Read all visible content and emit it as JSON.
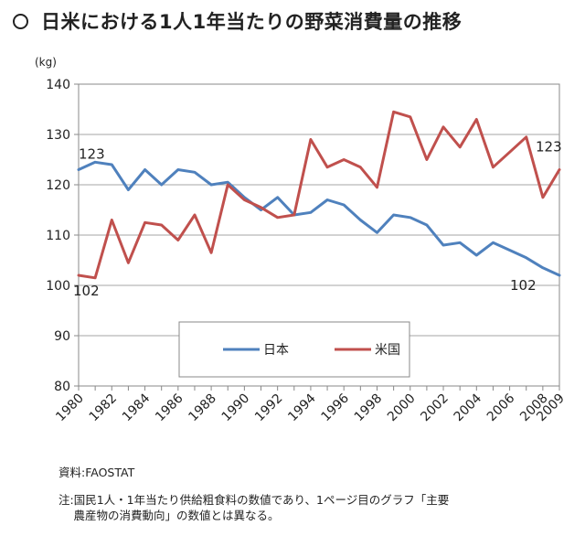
{
  "title": "日米における1人1年当たりの野菜消費量の推移",
  "chart_data": {
    "type": "line",
    "ylabel": "(kg)",
    "ylim": [
      80,
      140
    ],
    "yticks": [
      80,
      90,
      100,
      110,
      120,
      130,
      140
    ],
    "xlim": [
      1980,
      2009
    ],
    "xticks": [
      1980,
      1982,
      1984,
      1986,
      1988,
      1990,
      1992,
      1994,
      1996,
      1998,
      2000,
      2002,
      2004,
      2006,
      2008,
      2009
    ],
    "grid": true,
    "legend_placement": "bottom-center",
    "series": [
      {
        "name": "日本",
        "color": "#4f81bd",
        "x": [
          1980,
          1981,
          1982,
          1983,
          1984,
          1985,
          1986,
          1987,
          1988,
          1989,
          1990,
          1991,
          1992,
          1993,
          1994,
          1995,
          1996,
          1997,
          1998,
          1999,
          2000,
          2001,
          2002,
          2003,
          2004,
          2005,
          2006,
          2007,
          2008,
          2009
        ],
        "values": [
          123,
          124.5,
          124,
          119,
          123,
          120,
          123,
          122.5,
          120,
          120.5,
          117.5,
          115,
          117.5,
          114,
          114.5,
          117,
          116,
          113,
          110.5,
          114,
          113.5,
          112,
          108,
          108.5,
          106,
          108.5,
          107,
          105.5,
          103.5,
          102
        ]
      },
      {
        "name": "米国",
        "color": "#c0504d",
        "x": [
          1980,
          1981,
          1982,
          1983,
          1984,
          1985,
          1986,
          1987,
          1988,
          1989,
          1990,
          1991,
          1992,
          1993,
          1994,
          1995,
          1996,
          1997,
          1998,
          1999,
          2000,
          2001,
          2002,
          2003,
          2004,
          2005,
          2006,
          2007,
          2008,
          2009
        ],
        "values": [
          102,
          101.5,
          113,
          104.5,
          112.5,
          112,
          109,
          114,
          106.5,
          120,
          117,
          115.5,
          113.5,
          114,
          129,
          123.5,
          125,
          123.5,
          119.5,
          134.5,
          133.5,
          125,
          131.5,
          127.5,
          133,
          123.5,
          126.5,
          129.5,
          117.5,
          123
        ]
      }
    ],
    "annotations": [
      {
        "text": "123",
        "series": "日本",
        "x": 1980
      },
      {
        "text": "102",
        "series": "米国",
        "x": 1980
      },
      {
        "text": "123",
        "series": "米国",
        "x": 2009
      },
      {
        "text": "102",
        "series": "日本",
        "x": 2009
      }
    ]
  },
  "footer": {
    "source": "資料:FAOSTAT",
    "note_line1": "注:国民1人・1年当たり供給粗食料の数値であり、1ページ目のグラフ「主要",
    "note_line2": "　 農産物の消費動向」の数値とは異なる。"
  }
}
